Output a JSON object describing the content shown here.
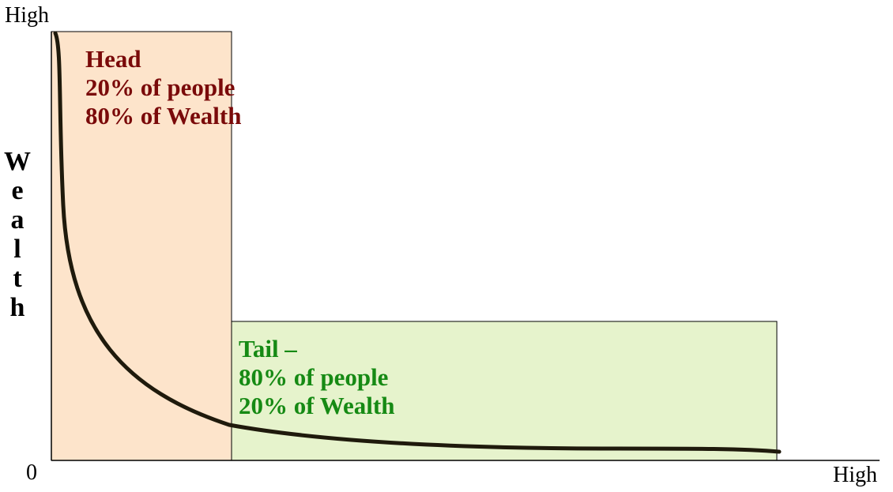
{
  "axes": {
    "y_top_label": "High",
    "origin_label": "0",
    "x_right_label": "High",
    "y_title_letters": [
      "W",
      "e",
      "a",
      "l",
      "t",
      "h"
    ]
  },
  "head": {
    "lines": [
      "Head",
      "20% of people",
      "80% of Wealth"
    ],
    "fill_color": "#fde4cb",
    "text_color": "#7a0a0a"
  },
  "tail": {
    "lines": [
      "Tail –",
      "80% of people",
      "20% of Wealth"
    ],
    "fill_color": "#e6f3cc",
    "text_color": "#168a14"
  },
  "curve": {
    "color": "#1f1a0c",
    "shape": "long-tail decay"
  }
}
